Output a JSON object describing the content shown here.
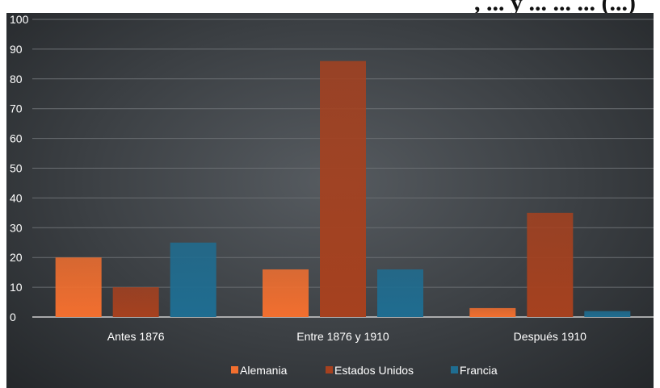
{
  "top_title_fragment": ", ... y ... ... ... (...)",
  "chart_data": {
    "type": "bar",
    "categories": [
      "Antes 1876",
      "Entre 1876  y 1910",
      "Después 1910"
    ],
    "series": [
      {
        "name": "Alemania",
        "values": [
          20,
          16,
          3
        ],
        "color": "#f26f2f"
      },
      {
        "name": "Estados Unidos",
        "values": [
          10,
          86,
          35
        ],
        "color": "#a6411f"
      },
      {
        "name": "Francia",
        "values": [
          25,
          16,
          2
        ],
        "color": "#1f6d91"
      }
    ],
    "title": "",
    "xlabel": "",
    "ylabel": "",
    "ylim": [
      0,
      100
    ],
    "yticks": [
      0,
      10,
      20,
      30,
      40,
      50,
      60,
      70,
      80,
      90,
      100
    ],
    "grid": true,
    "legend_position": "bottom"
  }
}
